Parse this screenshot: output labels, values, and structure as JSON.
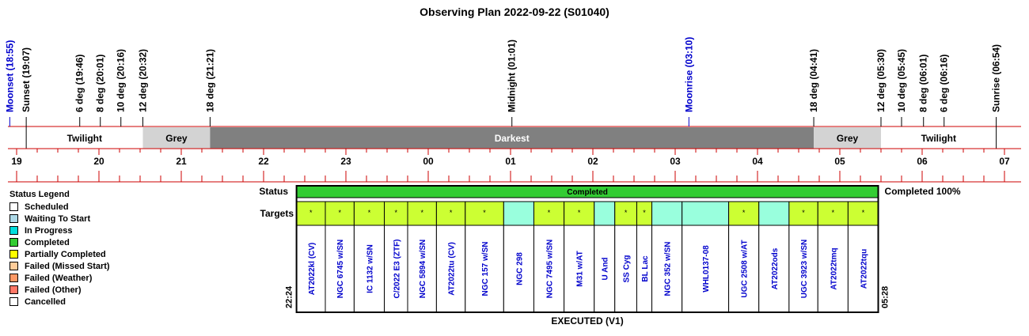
{
  "title": "Observing Plan 2022-09-22 (S01040)",
  "colors": {
    "grid_red": "#cc0000",
    "moon_blue": "#0000cc",
    "grey_band": "#d3d3d3",
    "darkest_band": "#808080",
    "completed_green": "#33cc33",
    "target_green": "#ccff33",
    "target_aqua": "#99ffdd"
  },
  "events": [
    {
      "label": "Moonset (18:55)",
      "time": "18:55",
      "moon": true
    },
    {
      "label": "Sunset (19:07)",
      "time": "19:07",
      "moon": false
    },
    {
      "label": "6 deg (19:46)",
      "time": "19:46",
      "moon": false
    },
    {
      "label": "8 deg (20:01)",
      "time": "20:01",
      "moon": false
    },
    {
      "label": "10 deg (20:16)",
      "time": "20:16",
      "moon": false
    },
    {
      "label": "12 deg (20:32)",
      "time": "20:32",
      "moon": false
    },
    {
      "label": "18 deg (21:21)",
      "time": "21:21",
      "moon": false
    },
    {
      "label": "Midnight (01:01)",
      "time": "01:01",
      "moon": false
    },
    {
      "label": "Moonrise (03:10)",
      "time": "03:10",
      "moon": true
    },
    {
      "label": "18 deg (04:41)",
      "time": "04:41",
      "moon": false
    },
    {
      "label": "12 deg (05:30)",
      "time": "05:30",
      "moon": false
    },
    {
      "label": "10 deg (05:45)",
      "time": "05:45",
      "moon": false
    },
    {
      "label": "8 deg (06:01)",
      "time": "06:01",
      "moon": false
    },
    {
      "label": "6 deg (06:16)",
      "time": "06:16",
      "moon": false
    },
    {
      "label": "Sunrise (06:54)",
      "time": "06:54",
      "moon": false
    }
  ],
  "bands": [
    {
      "label": "Twilight",
      "start": "19:07",
      "end": "20:32",
      "kind": "twilight"
    },
    {
      "label": "Grey",
      "start": "20:32",
      "end": "21:21",
      "kind": "grey"
    },
    {
      "label": "Darkest",
      "start": "21:21",
      "end": "04:41",
      "kind": "darkest"
    },
    {
      "label": "Grey",
      "start": "04:41",
      "end": "05:30",
      "kind": "grey"
    },
    {
      "label": "Twilight",
      "start": "05:30",
      "end": "06:54",
      "kind": "twilight"
    }
  ],
  "hours": [
    "19",
    "20",
    "21",
    "22",
    "23",
    "00",
    "01",
    "02",
    "03",
    "04",
    "05",
    "06",
    "07"
  ],
  "plan": {
    "status_label": "Status",
    "targets_label": "Targets",
    "status_text": "Completed",
    "completion": "Completed 100%",
    "start_time": "22:24",
    "end_time": "05:28",
    "footer": "EXECUTED (V1)",
    "targets": [
      {
        "name": "AT2022kl (CV)",
        "start": "22:24",
        "end": "22:45",
        "color": "green",
        "mark": "*"
      },
      {
        "name": "NGC 6745 w/SN",
        "start": "22:45",
        "end": "23:06",
        "color": "green",
        "mark": "*"
      },
      {
        "name": "IC 1132 w/SN",
        "start": "23:06",
        "end": "23:28",
        "color": "green",
        "mark": "*"
      },
      {
        "name": "C/2022 E3 (ZTF)",
        "start": "23:28",
        "end": "23:45",
        "color": "green",
        "mark": "*"
      },
      {
        "name": "NGC 5894 w/SN",
        "start": "23:45",
        "end": "00:06",
        "color": "green",
        "mark": "*"
      },
      {
        "name": "AT2022tu (CV)",
        "start": "00:06",
        "end": "00:27",
        "color": "green",
        "mark": "*"
      },
      {
        "name": "NGC 157 w/SN",
        "start": "00:27",
        "end": "00:55",
        "color": "green",
        "mark": "*"
      },
      {
        "name": "NGC 298",
        "start": "00:55",
        "end": "01:17",
        "color": "aqua",
        "mark": ""
      },
      {
        "name": "NGC 7495 w/SN",
        "start": "01:17",
        "end": "01:39",
        "color": "green",
        "mark": "*"
      },
      {
        "name": "M31 w/AT",
        "start": "01:39",
        "end": "02:01",
        "color": "green",
        "mark": "*"
      },
      {
        "name": "U And",
        "start": "02:01",
        "end": "02:16",
        "color": "aqua",
        "mark": ""
      },
      {
        "name": "SS Cyg",
        "start": "02:16",
        "end": "02:32",
        "color": "green",
        "mark": "*"
      },
      {
        "name": "BL Lac",
        "start": "02:32",
        "end": "02:43",
        "color": "green",
        "mark": "*"
      },
      {
        "name": "NGC 352 w/SN",
        "start": "02:43",
        "end": "03:05",
        "color": "aqua",
        "mark": ""
      },
      {
        "name": "WHL0137-08",
        "start": "03:05",
        "end": "03:39",
        "color": "aqua",
        "mark": ""
      },
      {
        "name": "UGC 2508 w/AT",
        "start": "03:39",
        "end": "04:01",
        "color": "green",
        "mark": "*"
      },
      {
        "name": "AT2022ods",
        "start": "04:01",
        "end": "04:23",
        "color": "aqua",
        "mark": ""
      },
      {
        "name": "UGC 3923 w/SN",
        "start": "04:23",
        "end": "04:44",
        "color": "green",
        "mark": "*"
      },
      {
        "name": "AT2022tmq",
        "start": "04:44",
        "end": "05:06",
        "color": "green",
        "mark": "*"
      },
      {
        "name": "AT2022tqu",
        "start": "05:06",
        "end": "05:28",
        "color": "green",
        "mark": "*"
      }
    ]
  },
  "legend": {
    "title": "Status Legend",
    "items": [
      {
        "label": "Scheduled",
        "color": "#ffffff"
      },
      {
        "label": "Waiting To Start",
        "color": "#add8e6"
      },
      {
        "label": "In Progress",
        "color": "#00dddd"
      },
      {
        "label": "Completed",
        "color": "#33cc33"
      },
      {
        "label": "Partially Completed",
        "color": "#ffff00"
      },
      {
        "label": "Failed (Missed Start)",
        "color": "#ffcc99"
      },
      {
        "label": "Failed (Weather)",
        "color": "#ff9966"
      },
      {
        "label": "Failed (Other)",
        "color": "#ff7766"
      },
      {
        "label": "Cancelled",
        "color": "#ffffff"
      }
    ]
  }
}
